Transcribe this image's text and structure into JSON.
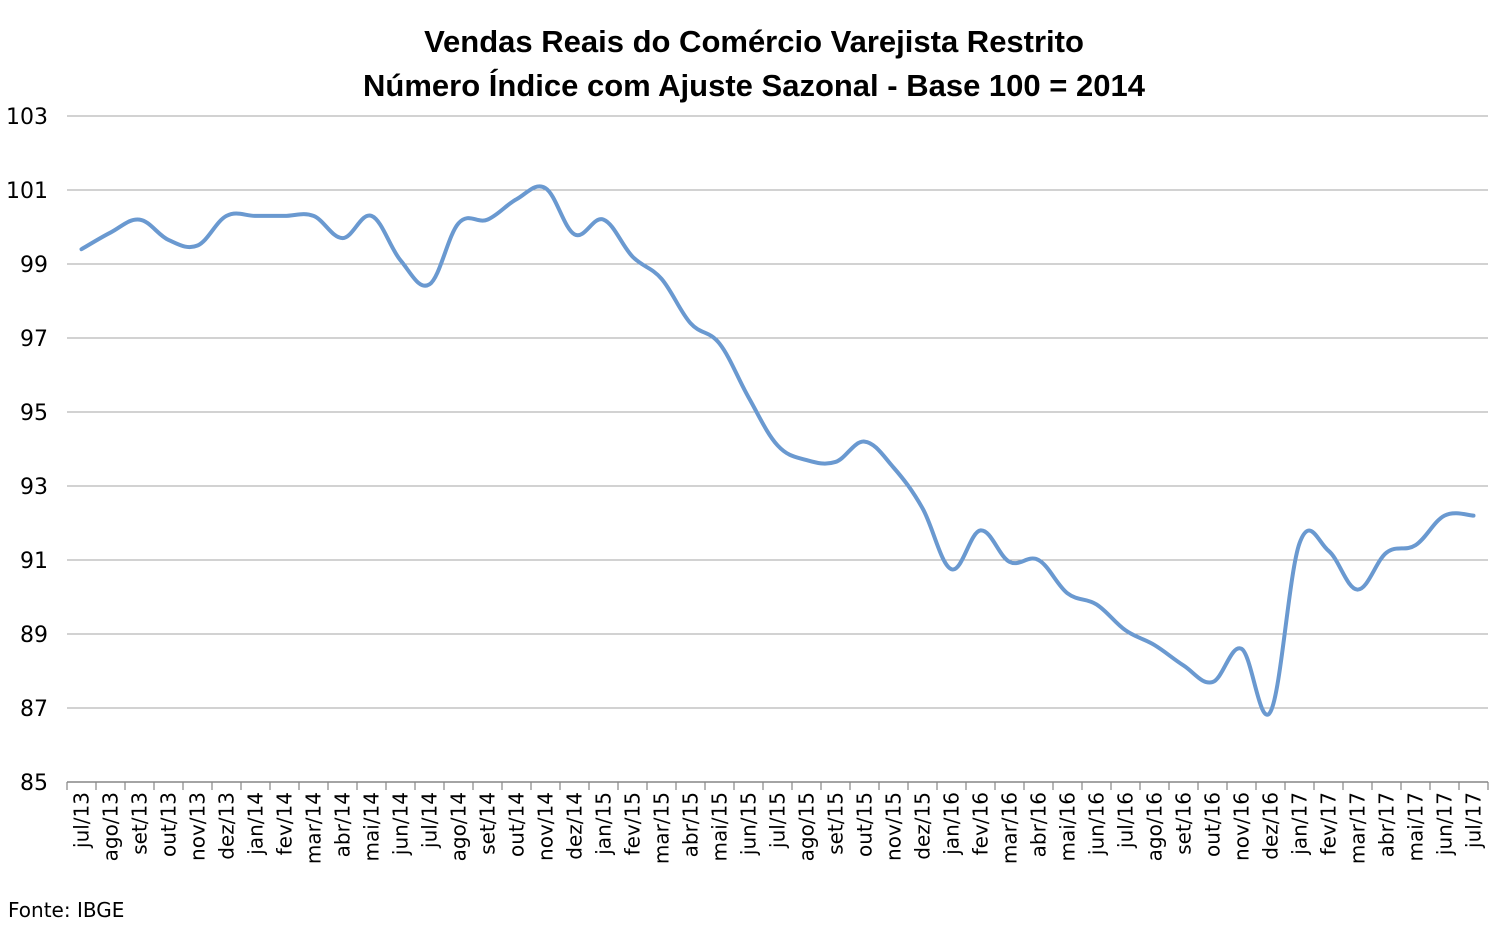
{
  "chart_data": {
    "type": "line",
    "title": "Vendas Reais do Comércio Varejista Restrito",
    "subtitle": "Número Índice com Ajuste Sazonal - Base 100 = 2014",
    "source": "Fonte: IBGE",
    "xlabel": "",
    "ylabel": "",
    "ylim": [
      85,
      103
    ],
    "yticks": [
      103,
      101,
      99,
      97,
      95,
      93,
      91,
      89,
      87,
      85
    ],
    "grid": true,
    "line_color": "#6a99d0",
    "categories": [
      "jul/13",
      "ago/13",
      "set/13",
      "out/13",
      "nov/13",
      "dez/13",
      "jan/14",
      "fev/14",
      "mar/14",
      "abr/14",
      "mai/14",
      "jun/14",
      "jul/14",
      "ago/14",
      "set/14",
      "out/14",
      "nov/14",
      "dez/14",
      "jan/15",
      "fev/15",
      "mar/15",
      "abr/15",
      "mai/15",
      "jun/15",
      "jul/15",
      "ago/15",
      "set/15",
      "out/15",
      "nov/15",
      "dez/15",
      "jan/16",
      "fev/16",
      "mar/16",
      "abr/16",
      "mai/16",
      "jun/16",
      "jul/16",
      "ago/16",
      "set/16",
      "out/16",
      "nov/16",
      "dez/16",
      "jan/17",
      "fev/17",
      "mar/17",
      "abr/17",
      "mai/17",
      "jun/17",
      "jul/17"
    ],
    "series": [
      {
        "values": [
          99.4,
          99.85,
          100.2,
          99.65,
          99.5,
          100.3,
          100.3,
          100.3,
          100.3,
          99.7,
          100.3,
          99.1,
          98.45,
          100.1,
          100.2,
          100.75,
          101.05,
          99.8,
          100.2,
          99.2,
          98.6,
          97.4,
          96.85,
          95.4,
          94.1,
          93.7,
          93.65,
          94.2,
          93.5,
          92.4,
          90.75,
          91.8,
          90.95,
          91.0,
          90.1,
          89.8,
          89.1,
          88.7,
          88.15,
          87.7,
          88.6,
          86.9,
          91.45,
          91.25,
          90.2,
          91.2,
          91.4,
          92.2,
          92.2
        ]
      }
    ]
  }
}
